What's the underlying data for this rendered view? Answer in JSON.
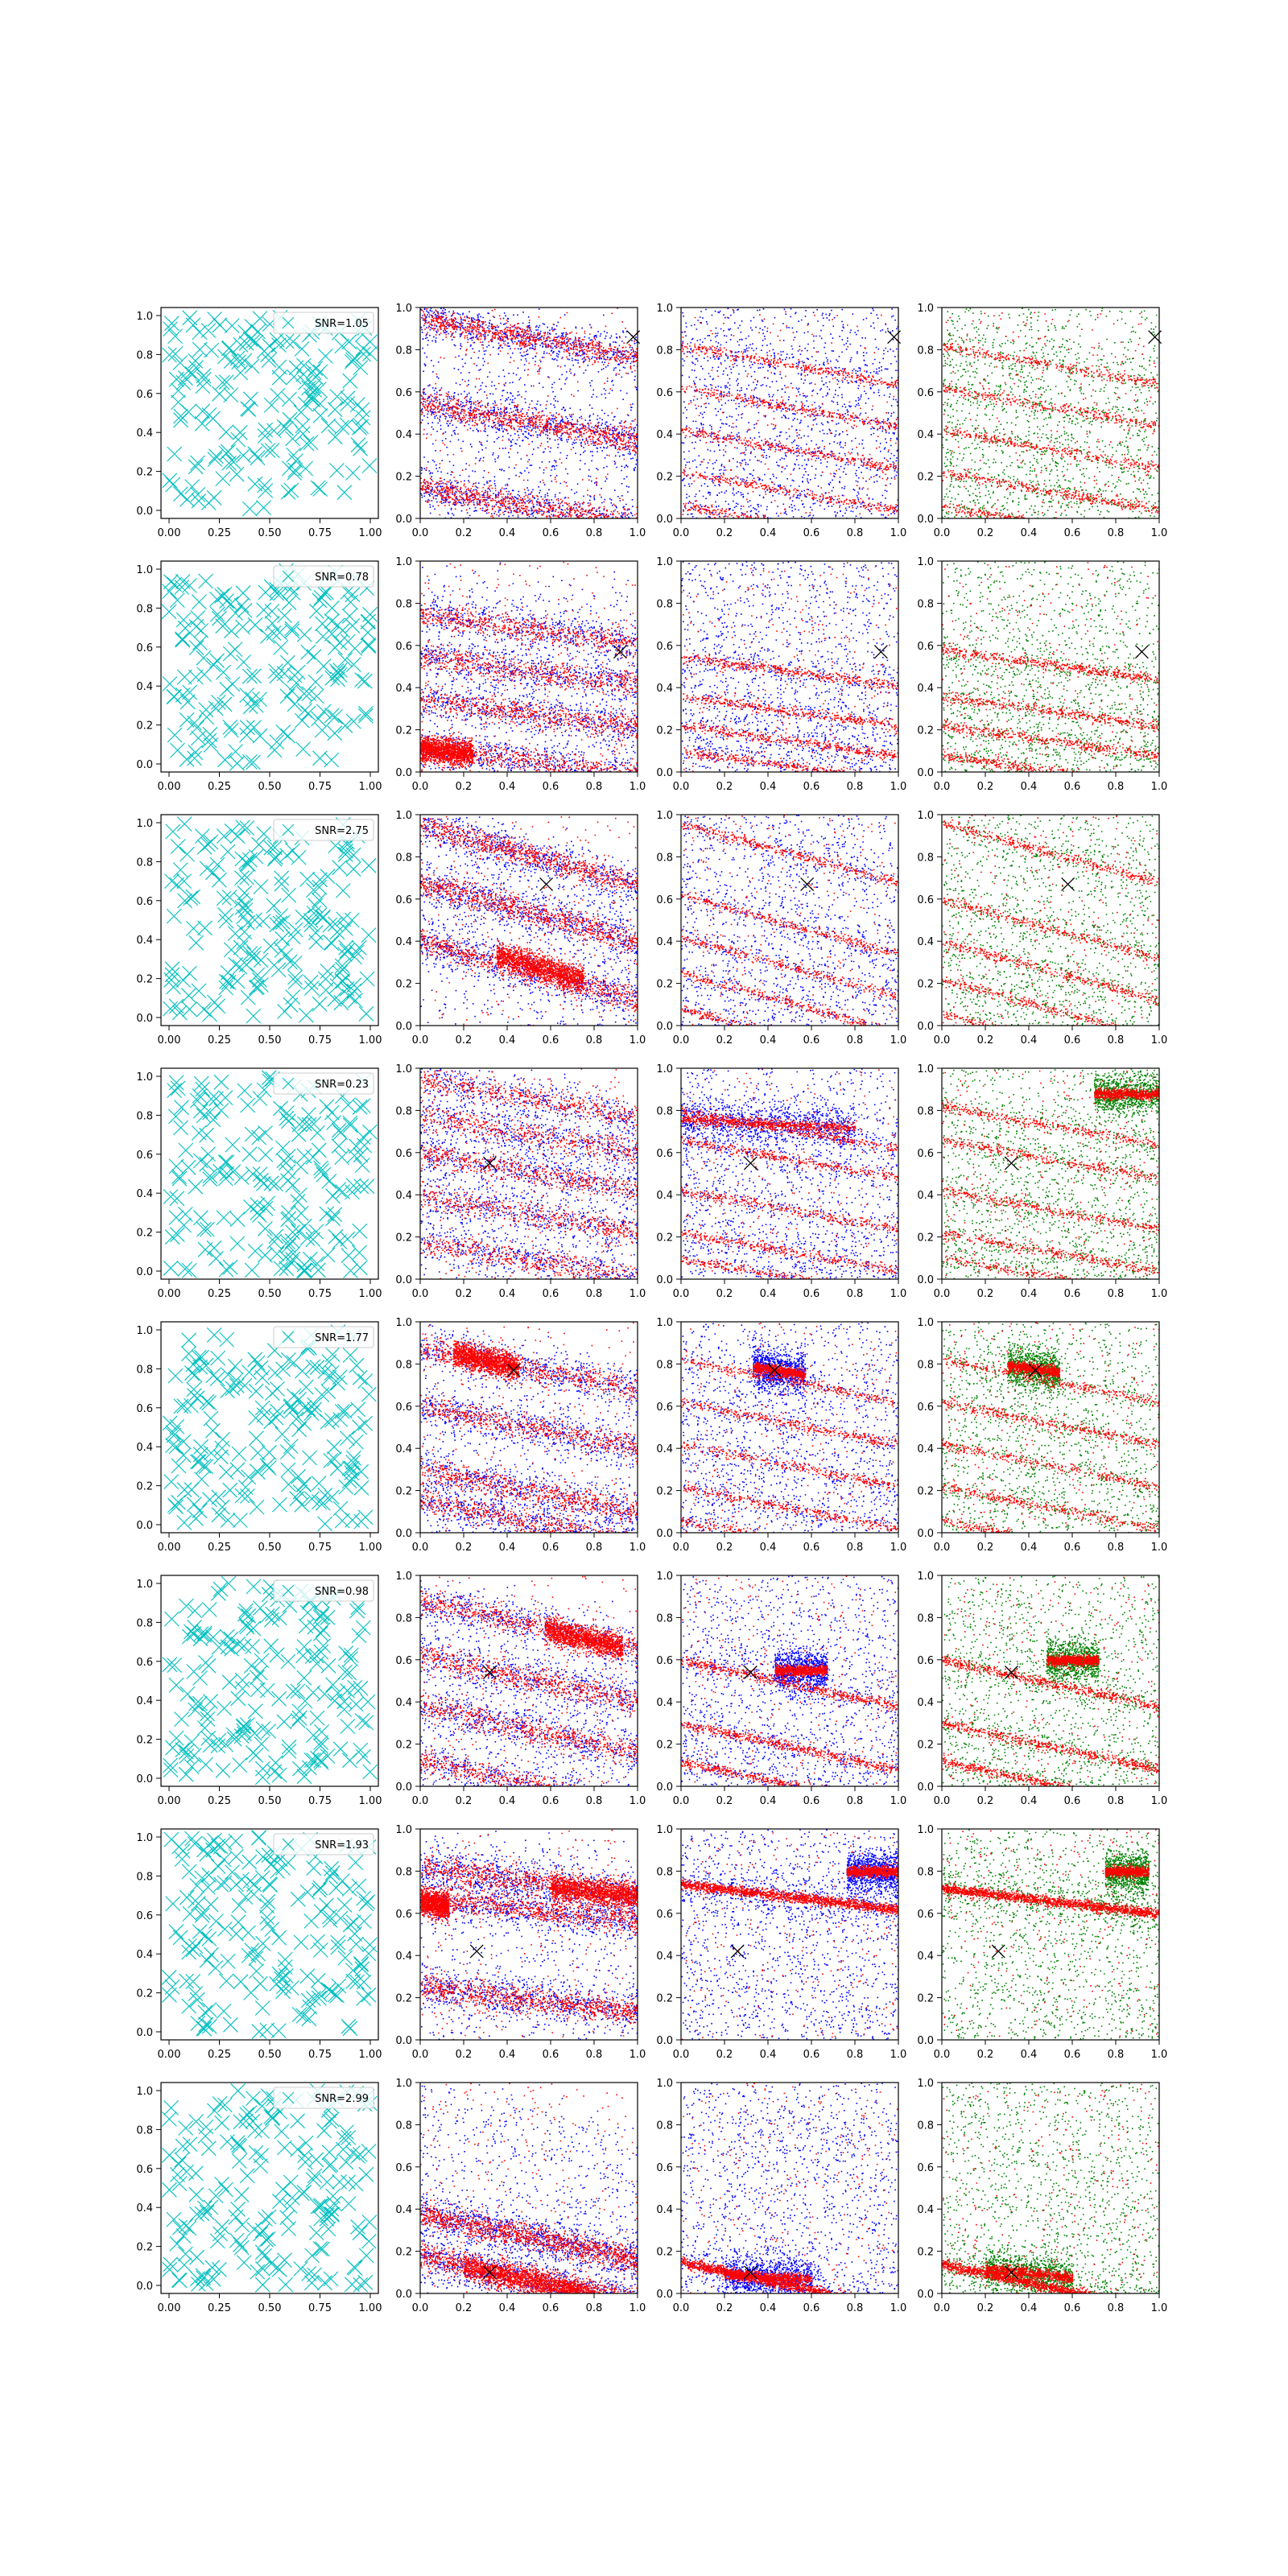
{
  "chart_data": {
    "type": "scatter",
    "layout": {
      "rows": 8,
      "columns": 4
    },
    "xlim": [
      0,
      1
    ],
    "ylim": [
      0,
      1
    ],
    "first_column_xticks": [
      "0.00",
      "0.25",
      "0.50",
      "0.75",
      "1.00"
    ],
    "other_columns_xticks": [
      "0.0",
      "0.2",
      "0.4",
      "0.6",
      "0.8",
      "1.0"
    ],
    "yticks": [
      "0.0",
      "0.2",
      "0.4",
      "0.6",
      "0.8",
      "1.0"
    ],
    "colors": {
      "cross_marker": "#00bfbf",
      "series_red": "#ff0000",
      "series_blue": "#0000ff",
      "series_green": "#008000",
      "reference_marker": "#000000"
    },
    "panel_types": [
      "random-crosses",
      "red-blue-stripes",
      "red-blue-bands",
      "red-green-bands"
    ],
    "rows": [
      {
        "legend": "SNR=1.05",
        "reference_point": [
          0.98,
          0.86
        ]
      },
      {
        "legend": "SNR=0.78",
        "reference_point": [
          0.92,
          0.57
        ]
      },
      {
        "legend": "SNR=2.75",
        "reference_point": [
          0.58,
          0.67
        ]
      },
      {
        "legend": "SNR=0.23",
        "reference_point": [
          0.32,
          0.55
        ]
      },
      {
        "legend": "SNR=1.77",
        "reference_point": [
          0.43,
          0.77
        ]
      },
      {
        "legend": "SNR=0.98",
        "reference_point": [
          0.32,
          0.54
        ]
      },
      {
        "legend": "SNR=1.93",
        "reference_point": [
          0.26,
          0.42
        ]
      },
      {
        "legend": "SNR=2.99",
        "reference_point": [
          0.32,
          0.1
        ]
      }
    ]
  }
}
